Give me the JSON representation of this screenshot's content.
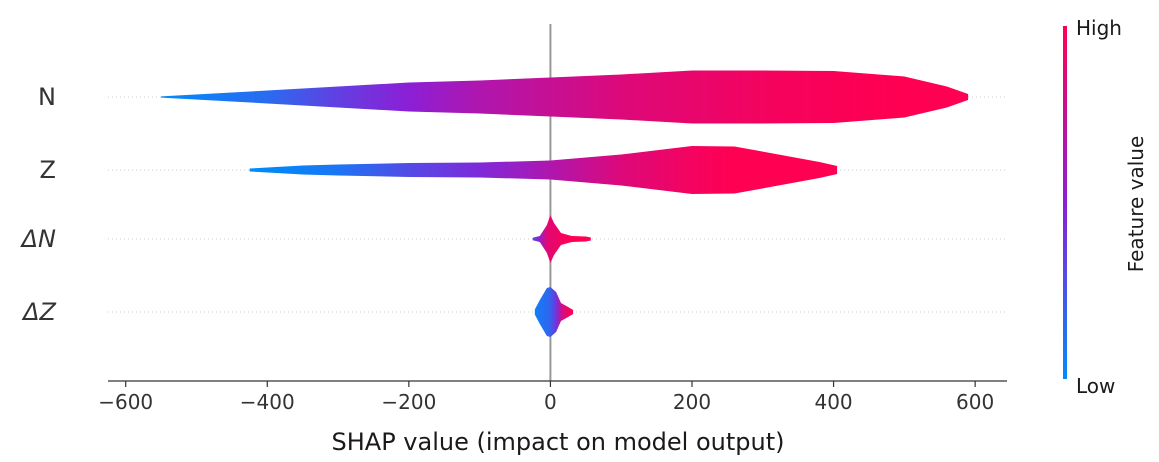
{
  "chart_data": {
    "type": "violin",
    "xlabel": "SHAP value (impact on model output)",
    "xlim": [
      -625,
      645
    ],
    "xticks": [
      -600,
      -400,
      -200,
      0,
      200,
      400,
      600
    ],
    "xtick_labels": [
      "−600",
      "−400",
      "−200",
      "0",
      "200",
      "400",
      "600"
    ],
    "features": [
      {
        "label": "N",
        "italic": false,
        "distribution": [
          [
            -550,
            0.6,
            0.0
          ],
          [
            -450,
            4.5,
            0.1
          ],
          [
            -400,
            6.5,
            0.15
          ],
          [
            -300,
            10.5,
            0.35
          ],
          [
            -200,
            14.5,
            0.5
          ],
          [
            -100,
            16.5,
            0.65
          ],
          [
            0,
            19.5,
            0.75
          ],
          [
            100,
            22.5,
            0.85
          ],
          [
            200,
            26.5,
            0.9
          ],
          [
            300,
            26.5,
            0.95
          ],
          [
            400,
            26.0,
            0.98
          ],
          [
            500,
            20.5,
            1.0
          ],
          [
            560,
            10.5,
            1.0
          ],
          [
            590,
            3.0,
            1.0
          ]
        ]
      },
      {
        "label": "Z",
        "italic": false,
        "distribution": [
          [
            -425,
            1.5,
            0.0
          ],
          [
            -350,
            4.5,
            0.05
          ],
          [
            -300,
            5.5,
            0.1
          ],
          [
            -200,
            7.0,
            0.3
          ],
          [
            -100,
            7.5,
            0.45
          ],
          [
            0,
            9.5,
            0.65
          ],
          [
            100,
            15.5,
            0.85
          ],
          [
            200,
            24.0,
            0.95
          ],
          [
            260,
            23.5,
            1.0
          ],
          [
            330,
            14.5,
            1.0
          ],
          [
            380,
            8.0,
            1.0
          ],
          [
            405,
            4.0,
            1.0
          ]
        ]
      },
      {
        "label": "ΔN",
        "italic": true,
        "distribution": [
          [
            -25,
            1.2,
            0.3
          ],
          [
            -15,
            3.0,
            0.55
          ],
          [
            -5,
            14.0,
            0.85
          ],
          [
            0,
            24.0,
            0.9
          ],
          [
            5,
            16.0,
            0.9
          ],
          [
            15,
            6.0,
            0.95
          ],
          [
            30,
            3.0,
            1.0
          ],
          [
            50,
            2.5,
            1.0
          ],
          [
            57,
            1.5,
            1.0
          ]
        ]
      },
      {
        "label": "ΔZ",
        "italic": true,
        "distribution": [
          [
            -22,
            2.5,
            0.05
          ],
          [
            -15,
            12.0,
            0.1
          ],
          [
            -5,
            24.0,
            0.15
          ],
          [
            0,
            25.0,
            0.2
          ],
          [
            8,
            20.0,
            0.4
          ],
          [
            15,
            9.0,
            0.75
          ],
          [
            25,
            5.0,
            0.95
          ],
          [
            32,
            2.0,
            1.0
          ]
        ]
      }
    ],
    "colorbar": {
      "title": "Feature value",
      "high_label": "High",
      "low_label": "Low",
      "low_color": "#008bfb",
      "mid_color": "#8c1fd6",
      "high_color": "#ff0052"
    },
    "zero_line_color": "#999999",
    "row_line_color": "#cccccc"
  }
}
